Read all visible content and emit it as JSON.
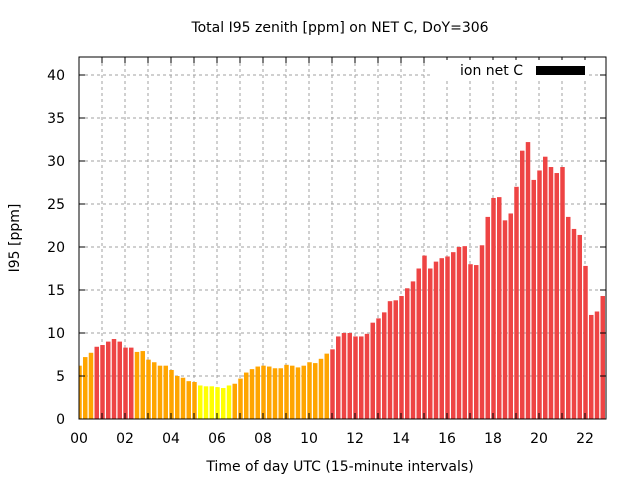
{
  "chart_data": {
    "type": "bar",
    "title": "Total I95 zenith [ppm] on NET C, DoY=306",
    "xlabel": "Time of day UTC (15-minute intervals)",
    "ylabel": "I95 [ppm]",
    "ylim": [
      0,
      42
    ],
    "xlim_hours": [
      0,
      22.9
    ],
    "grid": true,
    "bar_interval_minutes": 15,
    "x_ticks": [
      "00",
      "02",
      "04",
      "06",
      "08",
      "10",
      "12",
      "14",
      "16",
      "18",
      "20",
      "22"
    ],
    "y_ticks": [
      "0",
      "5",
      "10",
      "15",
      "20",
      "25",
      "30",
      "35",
      "40"
    ],
    "legend": {
      "label": "ion net C",
      "color": "#000000",
      "placement": "top-right"
    },
    "color_thresholds": [
      {
        "max": 4.0,
        "color": "#ffff00"
      },
      {
        "max": 8.0,
        "color": "#ffa500"
      },
      {
        "max": 999,
        "color": "#ee4444"
      }
    ],
    "values": [
      6.2,
      7.2,
      7.7,
      8.4,
      8.6,
      9.0,
      9.3,
      9.0,
      8.3,
      8.3,
      7.8,
      7.9,
      6.9,
      6.6,
      6.2,
      6.2,
      5.7,
      5.0,
      4.8,
      4.4,
      4.3,
      3.9,
      3.8,
      3.8,
      3.7,
      3.6,
      3.9,
      4.1,
      4.7,
      5.4,
      5.8,
      6.1,
      6.2,
      6.1,
      5.9,
      5.9,
      6.3,
      6.2,
      6.0,
      6.2,
      6.6,
      6.5,
      7.0,
      7.6,
      8.1,
      9.6,
      10.0,
      10.0,
      9.6,
      9.6,
      9.9,
      11.2,
      11.7,
      12.4,
      13.7,
      13.8,
      14.3,
      15.2,
      16.0,
      17.5,
      19.0,
      17.5,
      18.3,
      18.7,
      18.9,
      19.4,
      20.0,
      20.1,
      18.0,
      17.9,
      20.2,
      23.5,
      25.7,
      25.8,
      23.1,
      23.9,
      27.0,
      31.2,
      32.2,
      27.8,
      28.9,
      30.5,
      29.3,
      28.6,
      29.3,
      23.5,
      22.1,
      21.4,
      17.8,
      12.1,
      12.5,
      14.3
    ]
  }
}
